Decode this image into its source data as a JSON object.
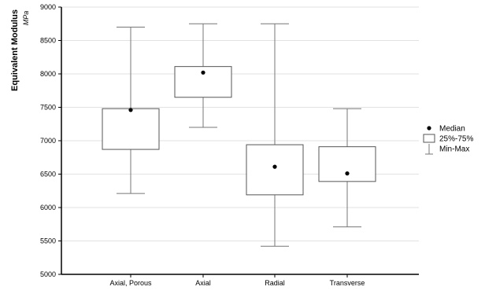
{
  "chart_data": {
    "type": "box",
    "ylabel": "Equivalent Modulus",
    "yunit": "MPa",
    "ylim": [
      5000,
      9000
    ],
    "yticks": [
      5000,
      5500,
      6000,
      6500,
      7000,
      7500,
      8000,
      8500,
      9000
    ],
    "grid": true,
    "legend_position": "right",
    "categories": [
      "Axial, Porous",
      "Axial",
      "Radial",
      "Transverse"
    ],
    "boxes": [
      {
        "min": 6210,
        "q1": 6870,
        "median": 7460,
        "q3": 7480,
        "max": 8700
      },
      {
        "min": 7200,
        "q1": 7650,
        "median": 8020,
        "q3": 8110,
        "max": 8750
      },
      {
        "min": 5420,
        "q1": 6190,
        "median": 6610,
        "q3": 6940,
        "max": 8750
      },
      {
        "min": 5710,
        "q1": 6390,
        "median": 6510,
        "q3": 6910,
        "max": 7480
      }
    ],
    "legend": [
      {
        "symbol": "dot",
        "label": "Median"
      },
      {
        "symbol": "box",
        "label": "25%-75%"
      },
      {
        "symbol": "whisker",
        "label": "Min-Max"
      }
    ],
    "colors": {
      "box_edge": "#555555",
      "whisker": "#777777",
      "median": "#000000",
      "grid": "#e2e2e2",
      "axis": "#000000"
    }
  }
}
